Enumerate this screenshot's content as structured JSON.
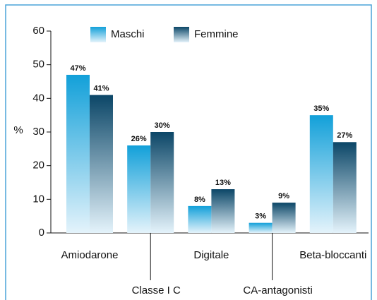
{
  "chart_data": {
    "type": "bar",
    "y_label": "%",
    "categories": [
      "Amiodarone",
      "Classe I C",
      "Digitale",
      "CA-antagonisti",
      "Beta-bloccanti"
    ],
    "series": [
      {
        "name": "Maschi",
        "color": "#12a0d9",
        "values": [
          47,
          26,
          8,
          3,
          35
        ],
        "value_labels": [
          "47%",
          "26%",
          "8%",
          "3%",
          "35%"
        ]
      },
      {
        "name": "Femmine",
        "color": "#0b4667",
        "values": [
          41,
          30,
          13,
          9,
          27
        ],
        "value_labels": [
          "41%",
          "30%",
          "13%",
          "9%",
          "27%"
        ]
      }
    ],
    "ylim": [
      0,
      60
    ],
    "yticks": [
      0,
      10,
      20,
      30,
      40,
      50,
      60
    ],
    "legend": "top"
  }
}
